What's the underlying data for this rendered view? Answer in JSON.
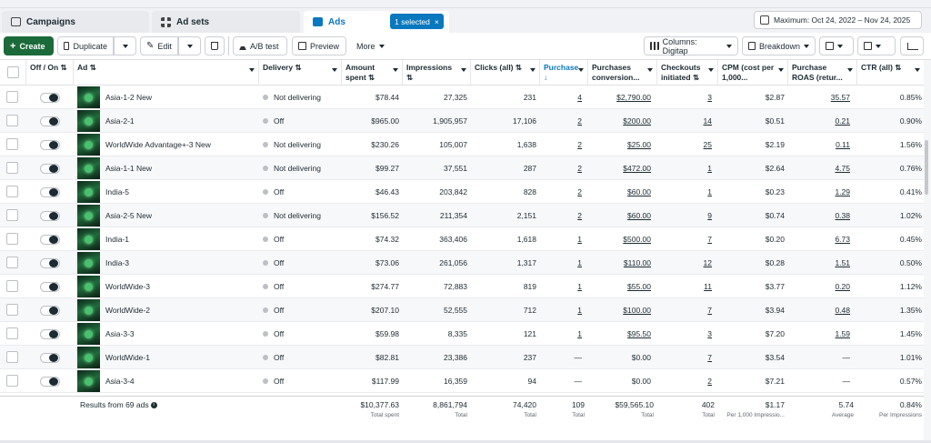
{
  "tabs": [
    {
      "label": "Campaigns",
      "icon": "folder-icon",
      "active": false
    },
    {
      "label": "Ad sets",
      "icon": "grid-icon",
      "active": false
    },
    {
      "label": "Ads",
      "icon": "ad-icon",
      "active": true
    }
  ],
  "selection_badge": {
    "label": "1 selected",
    "close": "×"
  },
  "date_range": {
    "label": "Maximum: Oct 24, 2022 – Nov 24, 2025"
  },
  "toolbar": {
    "create": "Create",
    "duplicate": "Duplicate",
    "edit": "Edit",
    "ab_test": "A/B test",
    "preview": "Preview",
    "more": "More",
    "columns": "Columns: Digitap",
    "breakdown": "Breakdown"
  },
  "columns": {
    "off_on": "Off / On ⇅",
    "ad": "Ad ⇅",
    "delivery": "Delivery ⇅",
    "amount_spent": "Amount spent ⇅",
    "impressions": "Impressions ⇅",
    "clicks": "Clicks (all) ⇅",
    "purchase": "Purchase ↓",
    "purchases_conversion": "Purchases conversion...",
    "checkouts": "Checkouts initiated ⇅",
    "cpm": "CPM (cost per 1,000...",
    "roas": "Purchase ROAS (retur...",
    "ctr": "CTR (all) ⇅"
  },
  "rows": [
    {
      "ad": "Asia-1-2 New",
      "delivery": "Not delivering",
      "spent": "$78.44",
      "impressions": "27,325",
      "clicks": "231",
      "purchase": "4",
      "conv": "$2,790.00",
      "checkouts": "3",
      "cpm": "$2.87",
      "roas": "35.57",
      "ctr": "0.85%"
    },
    {
      "ad": "Asia-2-1",
      "delivery": "Off",
      "spent": "$965.00",
      "impressions": "1,905,957",
      "clicks": "17,106",
      "purchase": "2",
      "conv": "$200.00",
      "checkouts": "14",
      "cpm": "$0.51",
      "roas": "0.21",
      "ctr": "0.90%"
    },
    {
      "ad": "WorldWide Advantage+-3 New",
      "delivery": "Not delivering",
      "spent": "$230.26",
      "impressions": "105,007",
      "clicks": "1,638",
      "purchase": "2",
      "conv": "$25.00",
      "checkouts": "25",
      "cpm": "$2.19",
      "roas": "0.11",
      "ctr": "1.56%"
    },
    {
      "ad": "Asia-1-1 New",
      "delivery": "Not delivering",
      "spent": "$99.27",
      "impressions": "37,551",
      "clicks": "287",
      "purchase": "2",
      "conv": "$472.00",
      "checkouts": "1",
      "cpm": "$2.64",
      "roas": "4.75",
      "ctr": "0.76%"
    },
    {
      "ad": "India-5",
      "delivery": "Off",
      "spent": "$46.43",
      "impressions": "203,842",
      "clicks": "828",
      "purchase": "2",
      "conv": "$60.00",
      "checkouts": "1",
      "cpm": "$0.23",
      "roas": "1.29",
      "ctr": "0.41%"
    },
    {
      "ad": "Asia-2-5 New",
      "delivery": "Not delivering",
      "spent": "$156.52",
      "impressions": "211,354",
      "clicks": "2,151",
      "purchase": "2",
      "conv": "$60.00",
      "checkouts": "9",
      "cpm": "$0.74",
      "roas": "0.38",
      "ctr": "1.02%"
    },
    {
      "ad": "India-1",
      "delivery": "Off",
      "spent": "$74.32",
      "impressions": "363,406",
      "clicks": "1,618",
      "purchase": "1",
      "conv": "$500.00",
      "checkouts": "7",
      "cpm": "$0.20",
      "roas": "6.73",
      "ctr": "0.45%"
    },
    {
      "ad": "India-3",
      "delivery": "Off",
      "spent": "$73.06",
      "impressions": "261,056",
      "clicks": "1,317",
      "purchase": "1",
      "conv": "$110.00",
      "checkouts": "12",
      "cpm": "$0.28",
      "roas": "1.51",
      "ctr": "0.50%"
    },
    {
      "ad": "WorldWide-3",
      "delivery": "Off",
      "spent": "$274.77",
      "impressions": "72,883",
      "clicks": "819",
      "purchase": "1",
      "conv": "$55.00",
      "checkouts": "11",
      "cpm": "$3.77",
      "roas": "0.20",
      "ctr": "1.12%"
    },
    {
      "ad": "WorldWide-2",
      "delivery": "Off",
      "spent": "$207.10",
      "impressions": "52,555",
      "clicks": "712",
      "purchase": "1",
      "conv": "$100.00",
      "checkouts": "7",
      "cpm": "$3.94",
      "roas": "0.48",
      "ctr": "1.35%"
    },
    {
      "ad": "Asia-3-3",
      "delivery": "Off",
      "spent": "$59.98",
      "impressions": "8,335",
      "clicks": "121",
      "purchase": "1",
      "conv": "$95.50",
      "checkouts": "3",
      "cpm": "$7.20",
      "roas": "1.59",
      "ctr": "1.45%"
    },
    {
      "ad": "WorldWide-1",
      "delivery": "Off",
      "spent": "$82.81",
      "impressions": "23,386",
      "clicks": "237",
      "purchase": "—",
      "conv": "$0.00",
      "checkouts": "7",
      "cpm": "$3.54",
      "roas": "—",
      "ctr": "1.01%"
    },
    {
      "ad": "Asia-3-4",
      "delivery": "Off",
      "spent": "$117.99",
      "impressions": "16,359",
      "clicks": "94",
      "purchase": "—",
      "conv": "$0.00",
      "checkouts": "2",
      "cpm": "$7.21",
      "roas": "—",
      "ctr": "0.57%"
    }
  ],
  "totals": {
    "results_label": "Results from 69 ads",
    "spent": "$10,377.63",
    "spent_sub": "Total spent",
    "impressions": "8,861,794",
    "impressions_sub": "Total",
    "clicks": "74,420",
    "clicks_sub": "Total",
    "purchase": "109",
    "purchase_sub": "Total",
    "conv": "$59,565.10",
    "conv_sub": "Total",
    "checkouts": "402",
    "checkouts_sub": "Total",
    "cpm": "$1.17",
    "cpm_sub": "Per 1,000 Impressio...",
    "roas": "5.74",
    "roas_sub": "Average",
    "ctr": "0.84%",
    "ctr_sub": "Per Impressions"
  }
}
